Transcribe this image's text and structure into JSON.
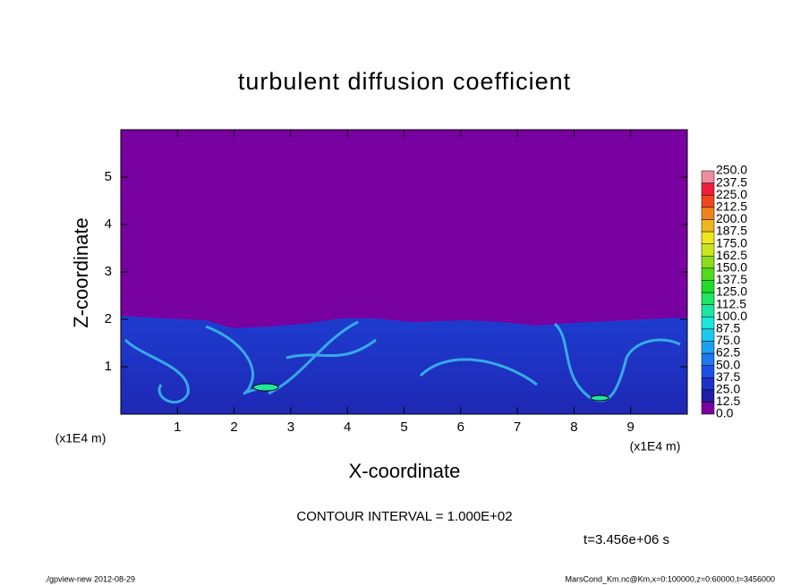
{
  "chart_data": {
    "type": "contour",
    "title": "turbulent diffusion coefficient",
    "xlabel": "X-coordinate",
    "ylabel": "Z-coordinate",
    "xunit": "(x1E4 m)",
    "yunit": "(x1E4 m)",
    "xlim": [
      0,
      10
    ],
    "ylim": [
      0,
      6
    ],
    "xticks": [
      1,
      2,
      3,
      4,
      5,
      6,
      7,
      8,
      9
    ],
    "yticks": [
      1,
      2,
      3,
      4,
      5
    ],
    "contour_interval": "CONTOUR INTERVAL = 1.000E+02",
    "time": "t=3.456e+06 s",
    "colorbar": {
      "levels": [
        {
          "value": 0,
          "label": "0.0"
        },
        {
          "value": 12.5,
          "label": "12.5"
        },
        {
          "value": 25,
          "label": "25.0"
        },
        {
          "value": 37.5,
          "label": "37.5"
        },
        {
          "value": 50,
          "label": "50.0"
        },
        {
          "value": 62.5,
          "label": "62.5"
        },
        {
          "value": 75,
          "label": "75.0"
        },
        {
          "value": 87.5,
          "label": "87.5"
        },
        {
          "value": 100,
          "label": "100.0"
        },
        {
          "value": 112.5,
          "label": "112.5"
        },
        {
          "value": 125,
          "label": "125.0"
        },
        {
          "value": 137.5,
          "label": "137.5"
        },
        {
          "value": 150,
          "label": "150.0"
        },
        {
          "value": 162.5,
          "label": "162.5"
        },
        {
          "value": 175,
          "label": "175.0"
        },
        {
          "value": 187.5,
          "label": "187.5"
        },
        {
          "value": 200,
          "label": "200.0"
        },
        {
          "value": 212.5,
          "label": "212.5"
        },
        {
          "value": 225,
          "label": "225.0"
        },
        {
          "value": 237.5,
          "label": "237.5"
        },
        {
          "value": 250,
          "label": "250.0"
        }
      ],
      "colors": [
        "#7800a0",
        "#1e1ea8",
        "#1e32c8",
        "#1e50e6",
        "#1e78f0",
        "#1ea0f0",
        "#1ec8f0",
        "#1ee6dc",
        "#1ee6a0",
        "#1ee664",
        "#1edc28",
        "#50dc1e",
        "#8cdc1e",
        "#c8e61e",
        "#f0e61e",
        "#f0b41e",
        "#f0821e",
        "#f0461e",
        "#f01e3c",
        "#f08ca0"
      ]
    },
    "footer_left": "./gpview-new  2012-08-29",
    "footer_right": "MarsCond_Km.nc@Km,x=0:100000,z=0:60000,t=3456000"
  }
}
